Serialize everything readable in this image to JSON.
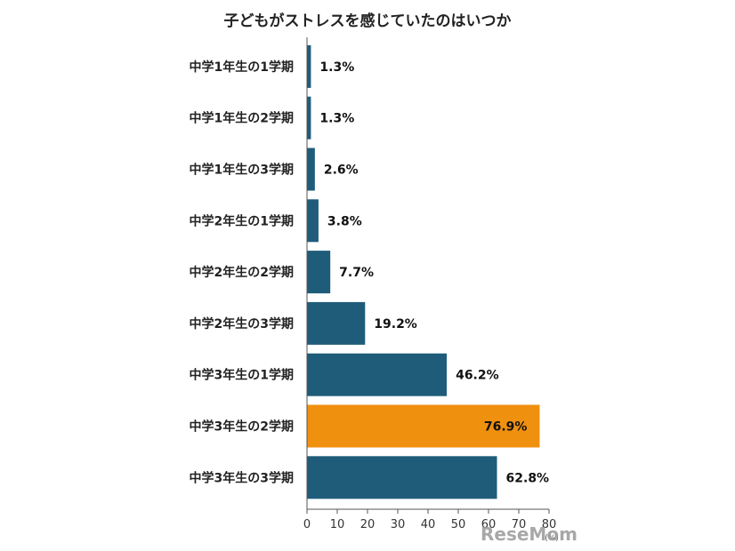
{
  "chart_data": {
    "type": "bar",
    "orientation": "horizontal",
    "title": "子どもがストレスを感じていたのはいつか",
    "categories": [
      "中学1年生の1学期",
      "中学1年生の2学期",
      "中学1年生の3学期",
      "中学2年生の1学期",
      "中学2年生の2学期",
      "中学2年生の3学期",
      "中学3年生の1学期",
      "中学3年生の2学期",
      "中学3年生の3学期"
    ],
    "values": [
      1.3,
      1.3,
      2.6,
      3.8,
      7.7,
      19.2,
      46.2,
      76.9,
      62.8
    ],
    "value_labels": [
      "1.3%",
      "1.3%",
      "2.6%",
      "3.8%",
      "7.7%",
      "19.2%",
      "46.2%",
      "76.9%",
      "62.8%"
    ],
    "highlight_index": 7,
    "xlim": [
      0,
      80
    ],
    "xticks": [
      0,
      10,
      20,
      30,
      40,
      50,
      60,
      70,
      80
    ],
    "unit_label": "(%)",
    "grid": false,
    "colors": {
      "bar": "#1f5c7a",
      "highlight": "#f0900f",
      "highlight_text": "#e8961e",
      "highlight_value_text": "#ffffff",
      "text": "#222222",
      "axis": "#555555"
    }
  },
  "watermark": "ReseMom"
}
